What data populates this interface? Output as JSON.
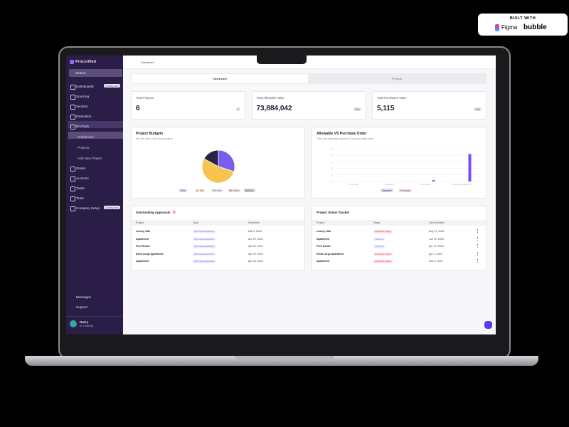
{
  "badge": {
    "title": "BUILT WITH",
    "tool1": "Figma",
    "tool2": "bubble"
  },
  "sidebar": {
    "brand": "Procurified",
    "search": "Search",
    "items": [
      "Dashboards",
      "Sourcing",
      "Vendors",
      "Estimation",
      "ProTrack",
      "Dashboard",
      "Projects",
      "Add New Project",
      "Stores",
      "Auctions",
      "Tasks",
      "Team",
      "Company Setup"
    ],
    "dashboards_badge": "Coming soon",
    "company_badge": "Coming soon",
    "bottom": [
      "Messages",
      "Support"
    ],
    "user": {
      "name": "Harry",
      "role": "AI Charting"
    }
  },
  "header": {
    "breadcrumb": "Dashboard",
    "tabs": [
      "Dashboard",
      "Projects"
    ]
  },
  "stats": [
    {
      "label": "Total Projects",
      "value": "6",
      "pill": "0"
    },
    {
      "label": "Total Allowable Value",
      "value": "73,884,042",
      "pill": "USD"
    },
    {
      "label": "Total Purchased Value",
      "value": "5,115",
      "pill": "USD"
    }
  ],
  "pie": {
    "title": "Project Budgets",
    "subtitle": "See the value of all of your projects",
    "categories": [
      "<$1m",
      "$1-10m",
      "$10-50m",
      "$50-100m",
      "$100m+"
    ],
    "values": [
      30,
      53,
      0,
      0,
      17
    ],
    "colors": [
      "#7b5cf0",
      "#f7c44f",
      "#c7c9d3",
      "#f0a5a5",
      "#2b2448"
    ]
  },
  "bar": {
    "title": "Allowable VS Purchase Order",
    "subtitle": "Track your allowable compared to your purchase value",
    "categories": [
      "Luxury villa",
      "Apartment",
      "Pent House",
      "Extra Large Apartment"
    ],
    "ylim": [
      0,
      5
    ],
    "yticks": [
      0,
      1,
      2,
      3,
      4,
      5
    ],
    "series": [
      {
        "name": "Allowable",
        "color": "#7b4cf5",
        "values": [
          0,
          0,
          0.2,
          4.2
        ]
      },
      {
        "name": "Purchased",
        "color": "#f08ca0",
        "values": [
          0,
          0,
          0,
          0
        ]
      }
    ]
  },
  "approvals": {
    "title": "Outstanding Approvals",
    "count": "5",
    "columns": [
      "Project",
      "Type",
      "Submitted"
    ],
    "rows": [
      [
        "Luxury villa",
        "Purchase Requisition",
        "Mar 4, 2024"
      ],
      [
        "Apartment",
        "Purchase Requisition",
        "Apr 29, 2024"
      ],
      [
        "Pent House",
        "Purchase Requisition",
        "Apr 29, 2024"
      ],
      [
        "Extra Large Apartment",
        "Purchase Requisition",
        "Apr 29, 2024"
      ],
      [
        "Apartment",
        "Purchase Requisition",
        "Apr 28, 2024"
      ]
    ]
  },
  "tracker": {
    "title": "Project Status Tracker",
    "columns": [
      "Project",
      "Stage",
      "Last Modified"
    ],
    "rows": [
      [
        "Luxury villa",
        "Estimation Stage",
        "Aug 27, 2024"
      ],
      [
        "Apartment",
        "Inventory",
        "Jun 19, 2024"
      ],
      [
        "Pent House",
        "Inventory",
        "Apr 19, 2024"
      ],
      [
        "Extra Large Apartment",
        "Estimation Stage",
        "Apr 3, 2024"
      ],
      [
        "Apartment",
        "Estimation Stage",
        "Nov 6, 2023"
      ]
    ]
  }
}
